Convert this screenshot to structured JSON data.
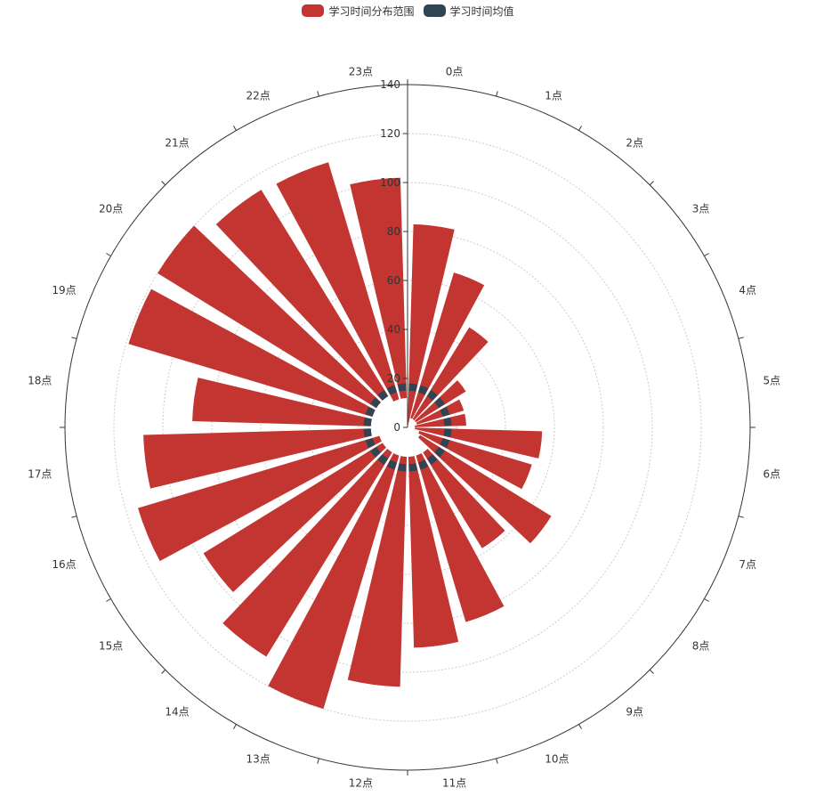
{
  "legend": {
    "range_label": "学习时间分布范围",
    "mean_label": "学习时间均值"
  },
  "colors": {
    "range": "#c23531",
    "mean": "#2f4554",
    "axis": "#333333",
    "grid": "#cccccc"
  },
  "chart_data": {
    "type": "polar-bar",
    "angle_categories": [
      "0点",
      "1点",
      "2点",
      "3点",
      "4点",
      "5点",
      "6点",
      "7点",
      "8点",
      "9点",
      "10点",
      "11点",
      "12点",
      "13点",
      "14点",
      "15点",
      "16点",
      "17点",
      "18点",
      "19点",
      "20点",
      "21点",
      "22点",
      "23点"
    ],
    "radius_ticks": [
      0,
      20,
      40,
      60,
      80,
      100,
      120,
      140
    ],
    "radius_max": 140,
    "series": [
      {
        "name": "学习时间分布范围",
        "stack": true,
        "start": [
          0,
          4,
          4,
          4,
          4,
          3,
          3,
          5,
          6,
          12,
          12,
          12,
          12,
          12,
          12,
          12,
          12,
          15,
          15,
          15,
          15,
          15,
          12,
          12
        ],
        "end": [
          83,
          66,
          48,
          28,
          24,
          24,
          55,
          53,
          69,
          58,
          83,
          90,
          106,
          120,
          110,
          98,
          115,
          108,
          88,
          119,
          120,
          114,
          113,
          102
        ]
      },
      {
        "name": "学习时间均值",
        "ring": [
          15,
          18
        ]
      }
    ]
  }
}
